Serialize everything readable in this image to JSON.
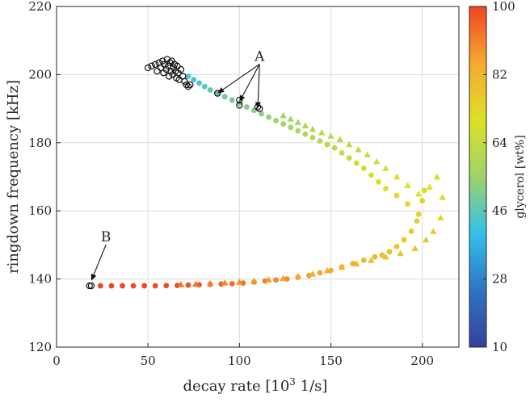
{
  "chart_data": {
    "type": "scatter",
    "xlabel": "decay rate [10",
    "xlabel_sup": "3",
    "xlabel_tail": " 1/s]",
    "ylabel": "ringdown frequency [kHz]",
    "xlim": [
      0,
      220
    ],
    "ylim": [
      120,
      220
    ],
    "xticks": [
      "0",
      "50",
      "100",
      "150",
      "200"
    ],
    "yticks": [
      "120",
      "140",
      "160",
      "180",
      "200",
      "220"
    ],
    "grid": true,
    "colorbar": {
      "label": "glycerol [wt%]",
      "range": [
        10,
        100
      ],
      "ticks": [
        "10",
        "28",
        "46",
        "64",
        "82",
        "100"
      ],
      "colors": [
        "#35419a",
        "#2f74c3",
        "#34c0e8",
        "#9ed36a",
        "#dde125",
        "#f6a92f",
        "#ef4523"
      ]
    },
    "annotations": [
      {
        "text": "A",
        "x": 111,
        "y": 204,
        "arrows": [
          [
            88,
            194.5
          ],
          [
            100,
            192
          ],
          [
            110,
            190
          ]
        ]
      },
      {
        "text": "B",
        "x": 27,
        "y": 151,
        "arrows": [
          [
            19,
            139.5
          ]
        ]
      }
    ],
    "series": [
      {
        "marker": "circle",
        "points": [
          [
            72,
            199.5,
            42
          ],
          [
            75,
            198.5,
            43
          ],
          [
            78,
            197.5,
            44
          ],
          [
            81,
            196.5,
            45
          ],
          [
            84,
            195.5,
            46
          ],
          [
            88,
            194.5,
            47
          ],
          [
            92,
            193.5,
            48
          ],
          [
            96,
            192.5,
            49
          ],
          [
            100,
            191.5,
            50
          ],
          [
            104,
            190.5,
            51
          ],
          [
            108,
            189.5,
            52
          ],
          [
            112,
            188.5,
            53
          ],
          [
            116,
            187.5,
            54
          ],
          [
            120,
            186.5,
            55
          ],
          [
            124,
            185.5,
            56
          ],
          [
            128,
            184.5,
            57
          ],
          [
            132,
            183.5,
            58
          ],
          [
            136,
            182.5,
            59
          ],
          [
            140,
            181.5,
            60
          ],
          [
            144,
            180.5,
            61
          ],
          [
            148,
            179.5,
            62
          ],
          [
            152,
            178.5,
            63
          ],
          [
            156,
            177,
            64
          ],
          [
            160,
            175.5,
            65
          ],
          [
            164,
            174,
            66
          ],
          [
            168,
            172.5,
            67
          ],
          [
            172,
            170.5,
            68
          ],
          [
            176,
            168.5,
            69
          ],
          [
            180,
            166.5,
            70
          ],
          [
            186,
            164.5,
            71
          ],
          [
            192,
            162,
            72
          ],
          [
            198,
            159,
            74
          ],
          [
            201,
            166,
            73
          ],
          [
            200,
            163,
            73.5
          ],
          [
            197,
            157,
            75
          ],
          [
            194,
            154,
            76
          ],
          [
            190,
            151.5,
            77
          ],
          [
            186,
            149.5,
            78
          ],
          [
            182,
            148,
            79
          ],
          [
            178,
            147,
            80
          ],
          [
            174,
            146.5,
            81
          ],
          [
            168,
            145.5,
            82
          ],
          [
            162,
            144.5,
            83
          ],
          [
            156,
            143.5,
            84
          ],
          [
            150,
            142.5,
            85
          ],
          [
            144,
            141.8,
            86
          ],
          [
            138,
            141,
            87
          ],
          [
            132,
            140.5,
            88
          ],
          [
            126,
            140,
            89
          ],
          [
            120,
            139.7,
            90
          ],
          [
            114,
            139.4,
            91
          ],
          [
            108,
            139.1,
            92
          ],
          [
            102,
            138.8,
            93
          ],
          [
            96,
            138.6,
            94
          ],
          [
            90,
            138.5,
            95
          ],
          [
            84,
            138.4,
            96
          ],
          [
            78,
            138.3,
            97
          ],
          [
            72,
            138.2,
            98
          ],
          [
            66,
            138.1,
            98.5
          ],
          [
            60,
            138.05,
            99
          ],
          [
            54,
            138,
            99.3
          ],
          [
            48,
            138,
            99.5
          ],
          [
            42,
            138,
            99.7
          ],
          [
            36,
            138,
            99.8
          ],
          [
            30,
            138,
            99.9
          ],
          [
            24,
            138,
            100
          ]
        ]
      },
      {
        "marker": "triangle",
        "points": [
          [
            124,
            188,
            55
          ],
          [
            128,
            187,
            56
          ],
          [
            132,
            186,
            57
          ],
          [
            136,
            185,
            58
          ],
          [
            140,
            184,
            59
          ],
          [
            145,
            183,
            60
          ],
          [
            150,
            182,
            61
          ],
          [
            155,
            181,
            62
          ],
          [
            160,
            179.5,
            63
          ],
          [
            165,
            178,
            64
          ],
          [
            170,
            176.5,
            65
          ],
          [
            175,
            174.5,
            66
          ],
          [
            180,
            172.5,
            67
          ],
          [
            186,
            170,
            68
          ],
          [
            192,
            167.5,
            69
          ],
          [
            198,
            165,
            70
          ],
          [
            204,
            167,
            71
          ],
          [
            208,
            170,
            70.5
          ],
          [
            211,
            164,
            72
          ],
          [
            210,
            158,
            74
          ],
          [
            206,
            154,
            75
          ],
          [
            202,
            151.5,
            76
          ],
          [
            196,
            149,
            77
          ],
          [
            188,
            147.5,
            78
          ],
          [
            180,
            146.5,
            79
          ],
          [
            172,
            145.5,
            80
          ],
          [
            164,
            144.5,
            81
          ],
          [
            156,
            143.5,
            82
          ],
          [
            148,
            142.5,
            83
          ],
          [
            140,
            141.5,
            84
          ],
          [
            132,
            140.8,
            85
          ],
          [
            124,
            140.2,
            86
          ],
          [
            116,
            139.8,
            87
          ],
          [
            108,
            139.4,
            88
          ],
          [
            100,
            139.1,
            89
          ],
          [
            92,
            138.9,
            90
          ],
          [
            84,
            138.7,
            91
          ],
          [
            76,
            138.5,
            92
          ],
          [
            68,
            138.4,
            93
          ]
        ]
      },
      {
        "marker": "open-circle",
        "points": [
          [
            50,
            202
          ],
          [
            52,
            202.5
          ],
          [
            54,
            203
          ],
          [
            55,
            201
          ],
          [
            56,
            203.5
          ],
          [
            57,
            202
          ],
          [
            58,
            204
          ],
          [
            58.5,
            200.5
          ],
          [
            59,
            203
          ],
          [
            60,
            201.5
          ],
          [
            60.5,
            204.5
          ],
          [
            61,
            202.5
          ],
          [
            61.5,
            199.5
          ],
          [
            62,
            203.5
          ],
          [
            62.5,
            201
          ],
          [
            63,
            204
          ],
          [
            63.5,
            200
          ],
          [
            64,
            202
          ],
          [
            64.5,
            203
          ],
          [
            65,
            201
          ],
          [
            65.5,
            199
          ],
          [
            66,
            202.5
          ],
          [
            66.5,
            200.5
          ],
          [
            67,
            198.5
          ],
          [
            68,
            201.5
          ],
          [
            69,
            199.5
          ],
          [
            70,
            198
          ],
          [
            71,
            197
          ],
          [
            72,
            196.5
          ],
          [
            73,
            197
          ],
          [
            88,
            194.5
          ],
          [
            100,
            192.5
          ],
          [
            100,
            191
          ],
          [
            110,
            190.5
          ],
          [
            111,
            190
          ],
          [
            18,
            138
          ],
          [
            19,
            138
          ]
        ]
      }
    ]
  }
}
